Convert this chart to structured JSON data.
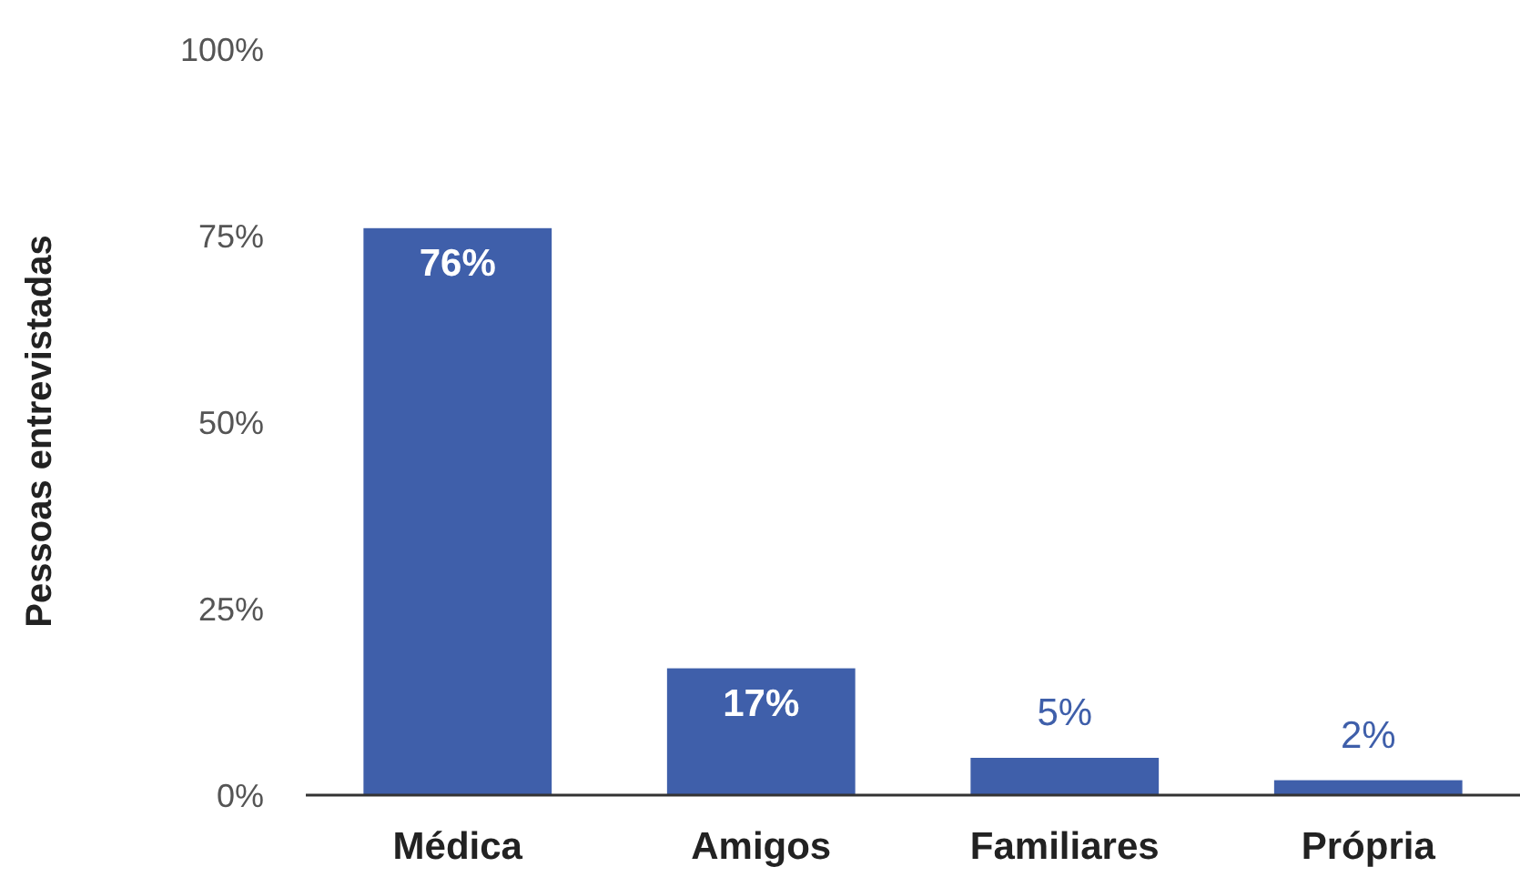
{
  "chart_data": {
    "type": "bar",
    "ylabel": "Pessoas entrevistadas",
    "categories": [
      "Médica",
      "Amigos",
      "Familiares",
      "Própria"
    ],
    "values": [
      76,
      17,
      5,
      2
    ],
    "value_labels": [
      "76%",
      "17%",
      "5%",
      "2%"
    ],
    "color": "#3f5faa",
    "ylim": [
      0,
      100
    ],
    "yticks": [
      {
        "value": 0,
        "label": "0%"
      },
      {
        "value": 25,
        "label": "25%"
      },
      {
        "value": 50,
        "label": "50%"
      },
      {
        "value": 75,
        "label": "75%"
      },
      {
        "value": 100,
        "label": "100%"
      }
    ],
    "grid": false
  }
}
